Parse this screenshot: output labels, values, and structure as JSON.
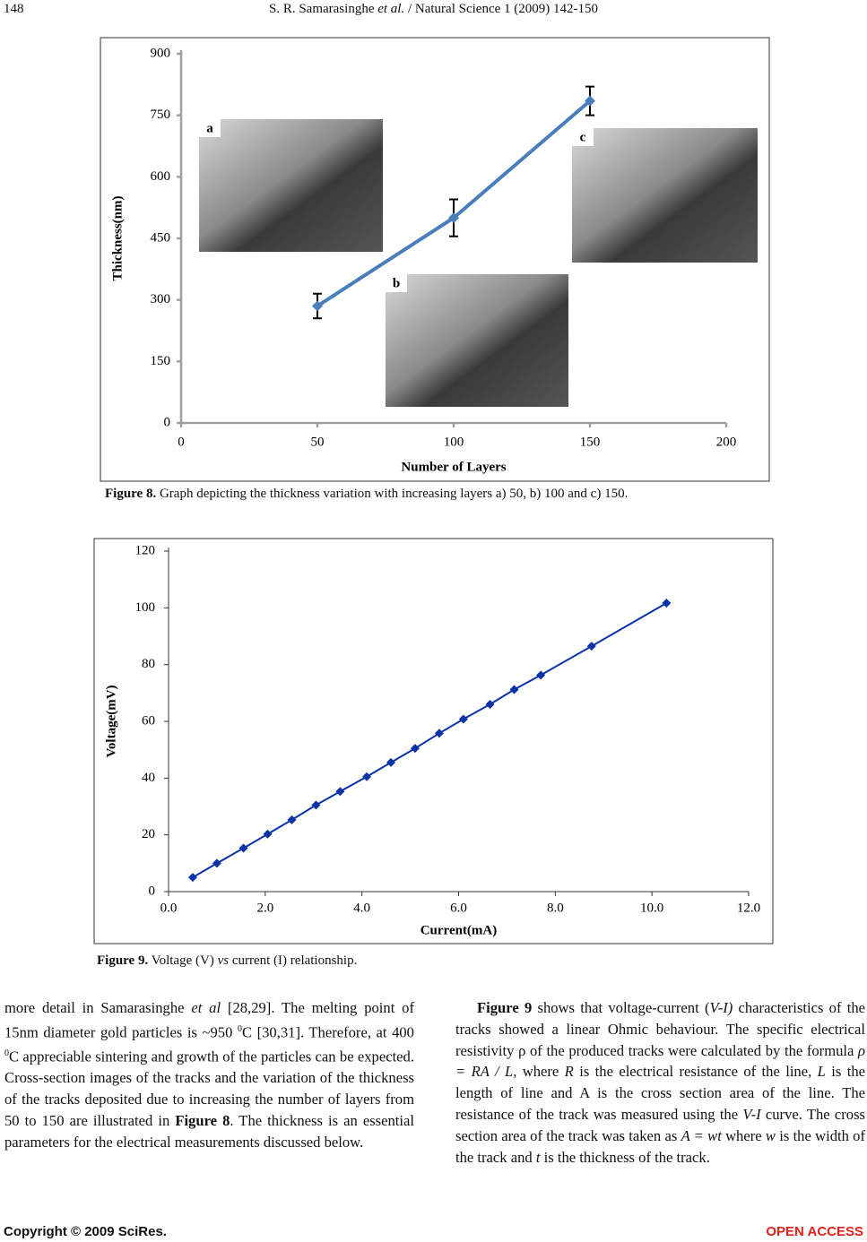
{
  "header": {
    "page_number": "148",
    "running_title": [
      {
        "text": "S. R. Samarasinghe "
      },
      {
        "text": "et al.",
        "style": "i"
      },
      {
        "text": " / Natural Science 1 (2009) 142-150"
      }
    ]
  },
  "chart_data": [
    {
      "type": "line",
      "x": [
        50,
        100,
        150
      ],
      "values": [
        285,
        500,
        785
      ],
      "errors": [
        30,
        45,
        35
      ],
      "color": "#4a7ebb",
      "xlim": [
        0,
        200
      ],
      "xticks": [
        0,
        50,
        100,
        150,
        200
      ],
      "ylim": [
        0,
        900
      ],
      "yticks": [
        0,
        150,
        300,
        450,
        600,
        750,
        900
      ],
      "xlabel": "Number of Layers",
      "ylabel": "Thickness(nm)",
      "insets": [
        "a",
        "b",
        "c"
      ]
    },
    {
      "type": "line",
      "x": [
        0.5,
        1.0,
        1.55,
        2.05,
        2.55,
        3.05,
        3.55,
        4.1,
        4.6,
        5.1,
        5.6,
        6.1,
        6.65,
        7.15,
        7.7,
        8.75,
        10.3
      ],
      "values": [
        5,
        10,
        15.3,
        20.3,
        25.3,
        30.5,
        35.3,
        40.5,
        45.5,
        50.5,
        55.8,
        60.8,
        66,
        71.2,
        76.3,
        86.5,
        101.7
      ],
      "color": "#0a33a8",
      "xlim": [
        0,
        12
      ],
      "xticks": [
        {
          "value": 0,
          "label": "0.0"
        },
        {
          "value": 2,
          "label": "2.0"
        },
        {
          "value": 4,
          "label": "4.0"
        },
        {
          "value": 6,
          "label": "6.0"
        },
        {
          "value": 8,
          "label": "8.0"
        },
        {
          "value": 10,
          "label": "10.0"
        },
        {
          "value": 12,
          "label": "12.0"
        }
      ],
      "ylim": [
        0,
        120
      ],
      "yticks": [
        0,
        20,
        40,
        60,
        80,
        100,
        120
      ],
      "xlabel": "Current(mA)",
      "ylabel": "Voltage(mV)"
    }
  ],
  "captions": [
    [
      {
        "text": "Figure 8.",
        "style": "b"
      },
      {
        "text": " Graph depicting the thickness variation with increasing layers a) 50, b) 100 and c) 150."
      }
    ],
    [
      {
        "text": "Figure 9.",
        "style": "b"
      },
      {
        "text": " Voltage (V) "
      },
      {
        "text": "vs",
        "style": "i"
      },
      {
        "text": " current (I) relationship."
      }
    ]
  ],
  "columns": [
    [
      {
        "text": "more detail in Samarasinghe "
      },
      {
        "text": "et al",
        "style": "i"
      },
      {
        "text": " [28,29]. The melting point of 15nm diameter gold particles is ~950 "
      },
      {
        "text": "0",
        "style": "sup"
      },
      {
        "text": "C [30,31]. Therefore, at 400 "
      },
      {
        "text": "0",
        "style": "sup"
      },
      {
        "text": "C appreciable sintering and growth of the particles can be expected. Cross-section images of the tracks and the variation of the thickness of the tracks deposited due to increasing the number of layers from 50 to 150 are illustrated in "
      },
      {
        "text": "Figure 8",
        "style": "b"
      },
      {
        "text": ". The thickness is an essential parameters for the electrical measurements discussed below."
      }
    ],
    [
      {
        "text": "Figure 9",
        "style": "b"
      },
      {
        "text": " shows that voltage-current ("
      },
      {
        "text": "V-I)",
        "style": "i"
      },
      {
        "text": " characteris­tics of the tracks showed a linear Ohmic behaviour. The specific electrical resistivity ρ of the produced tracks were calculated by the formula "
      },
      {
        "text": "ρ = RA / L",
        "style": "i"
      },
      {
        "text": ", where "
      },
      {
        "text": "R",
        "style": "i"
      },
      {
        "text": " is the electrical resistance of the line, "
      },
      {
        "text": "L",
        "style": "i"
      },
      {
        "text": " is the length of line and A is the cross section area of the line. The resistance of the track was measured using the "
      },
      {
        "text": "V-I",
        "style": "i"
      },
      {
        "text": " curve. The cross section area of the track was taken as "
      },
      {
        "text": "A = wt",
        "style": "i"
      },
      {
        "text": " where "
      },
      {
        "text": "w",
        "style": "i"
      },
      {
        "text": " is the width of the track and "
      },
      {
        "text": "t",
        "style": "i"
      },
      {
        "text": " is the thickness of the track."
      }
    ]
  ],
  "footer": {
    "copyright": "Copyright © 2009 SciRes.",
    "access": "OPEN ACCESS"
  }
}
